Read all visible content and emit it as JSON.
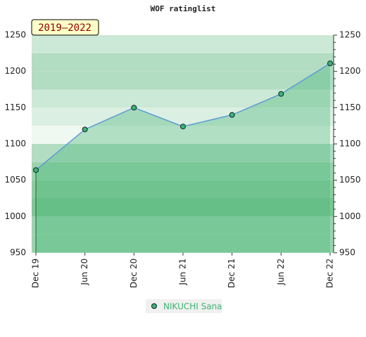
{
  "chart_data": {
    "type": "line",
    "title": "WOF ratinglist",
    "annotation": "2019–2022",
    "categories": [
      "Dec 19",
      "Jun 20",
      "Dec 20",
      "Jun 21",
      "Dec 21",
      "Jun 22",
      "Dec 22"
    ],
    "series": [
      {
        "name": "NIKUCHI Sana",
        "color": "#3cb371",
        "values": [
          1064,
          1120,
          1150,
          1124,
          1140,
          1169,
          1211
        ]
      }
    ],
    "ylim": [
      950,
      1250
    ],
    "yticks": [
      950,
      1000,
      1050,
      1100,
      1150,
      1200,
      1250
    ],
    "grid": true
  }
}
